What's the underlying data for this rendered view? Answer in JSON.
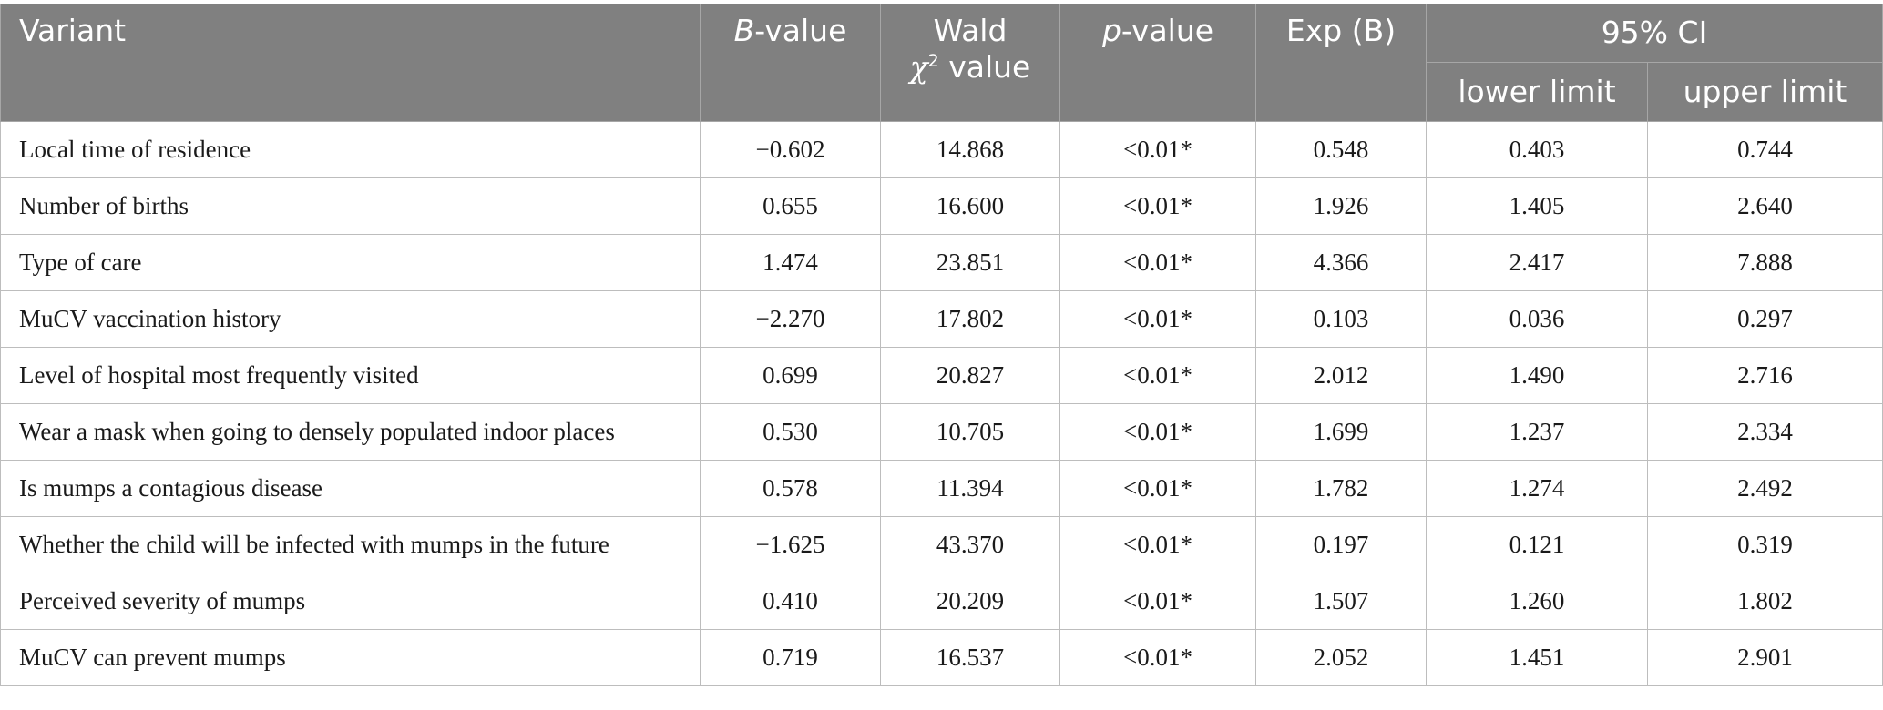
{
  "header": {
    "variant": "Variant",
    "b_italic": "B",
    "b_rest": "-value",
    "wald_line1": "Wald",
    "wald_chi": "χ",
    "wald_sup": "2",
    "wald_rest": " value",
    "p_italic": "p",
    "p_rest": "-value",
    "exp": "Exp (B)",
    "ci": "95% CI",
    "lower": "lower limit",
    "upper": "upper limit"
  },
  "rows": [
    {
      "variant": "Local time of residence",
      "b": "−0.602",
      "wald": "14.868",
      "p": "<0.01*",
      "exp": "0.548",
      "lower": "0.403",
      "upper": "0.744"
    },
    {
      "variant": "Number of births",
      "b": "0.655",
      "wald": "16.600",
      "p": "<0.01*",
      "exp": "1.926",
      "lower": "1.405",
      "upper": "2.640"
    },
    {
      "variant": "Type of care",
      "b": "1.474",
      "wald": "23.851",
      "p": "<0.01*",
      "exp": "4.366",
      "lower": "2.417",
      "upper": "7.888"
    },
    {
      "variant": "MuCV vaccination history",
      "b": "−2.270",
      "wald": "17.802",
      "p": "<0.01*",
      "exp": "0.103",
      "lower": "0.036",
      "upper": "0.297"
    },
    {
      "variant": "Level of hospital most frequently visited",
      "b": "0.699",
      "wald": "20.827",
      "p": "<0.01*",
      "exp": "2.012",
      "lower": "1.490",
      "upper": "2.716"
    },
    {
      "variant": "Wear a mask when going to densely populated indoor places",
      "b": "0.530",
      "wald": "10.705",
      "p": "<0.01*",
      "exp": "1.699",
      "lower": "1.237",
      "upper": "2.334"
    },
    {
      "variant": "Is mumps a contagious disease",
      "b": "0.578",
      "wald": "11.394",
      "p": "<0.01*",
      "exp": "1.782",
      "lower": "1.274",
      "upper": "2.492"
    },
    {
      "variant": "Whether the child will be infected with mumps in the future",
      "b": "−1.625",
      "wald": "43.370",
      "p": "<0.01*",
      "exp": "0.197",
      "lower": "0.121",
      "upper": "0.319"
    },
    {
      "variant": "Perceived severity of mumps",
      "b": "0.410",
      "wald": "20.209",
      "p": "<0.01*",
      "exp": "1.507",
      "lower": "1.260",
      "upper": "1.802"
    },
    {
      "variant": "MuCV can prevent mumps",
      "b": "0.719",
      "wald": "16.537",
      "p": "<0.01*",
      "exp": "2.052",
      "lower": "1.451",
      "upper": "2.901"
    }
  ]
}
